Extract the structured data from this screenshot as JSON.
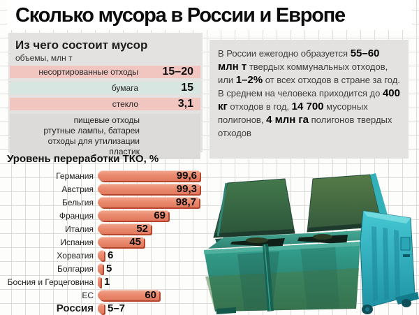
{
  "title": "Сколько мусора в России и Европе",
  "composition": {
    "header": "Из чего состоит мусор",
    "subheader": "объемы, млн т",
    "rows": [
      {
        "label": "несортированные отходы",
        "value": "15–20",
        "stripe": "pink"
      },
      {
        "label": "бумага",
        "value": "15",
        "stripe": "blue"
      },
      {
        "label": "стекло",
        "value": "3,1",
        "stripe": "pink"
      }
    ],
    "other_items": [
      "пищевые отходы",
      "ртутные лампы, батареи",
      "отходы для утилизации",
      "пластик"
    ]
  },
  "facts": {
    "segments": [
      {
        "text": "В России ежегодно образуется ",
        "bold": false
      },
      {
        "text": "55–60 млн т",
        "bold": true
      },
      {
        "text": " твердых коммунальных отходов, или ",
        "bold": false
      },
      {
        "text": "1–2%",
        "bold": true
      },
      {
        "text": " от всех отходов в стране за год. В среднем на человека приходится до ",
        "bold": false
      },
      {
        "text": "400 кг",
        "bold": true
      },
      {
        "text": " отходов в год, ",
        "bold": false
      },
      {
        "text": "14 700",
        "bold": true
      },
      {
        "text": " мусорных полигонов, ",
        "bold": false
      },
      {
        "text": "4 млн га",
        "bold": true
      },
      {
        "text": " полигонов твердых отходов",
        "bold": false
      }
    ]
  },
  "chart_data": {
    "type": "bar",
    "title": "Уровень переработки ТКО, %",
    "orientation": "horizontal",
    "categories": [
      "Германия",
      "Австрия",
      "Бельгия",
      "Франция",
      "Италия",
      "Испания",
      "Хорватия",
      "Болгария",
      "Босния и Герцеговина",
      "ЕС",
      "Россия"
    ],
    "values": [
      99.6,
      99.3,
      98.7,
      69,
      52,
      45,
      6,
      5,
      1,
      60,
      6
    ],
    "value_labels": [
      "99,6",
      "99,3",
      "98,7",
      "69",
      "52",
      "45",
      "6",
      "5",
      "1",
      "60",
      "5–7"
    ],
    "xlim": [
      0,
      100
    ],
    "grid": true,
    "highlight_category": "Россия",
    "legend": "none"
  },
  "colors": {
    "bar": "#ea8a6e",
    "bar_edge": "#b6452e",
    "stripe_pink": "#f1c6c0",
    "stripe_blue": "#d8e6e2",
    "panel_bg": "#e3e2e0",
    "dumpster_teal": "#2f9c8a",
    "dumpster_cyan": "#38bcc9",
    "dumpster_lid_green": "#3e7348"
  },
  "illustration": "green-dumpster"
}
